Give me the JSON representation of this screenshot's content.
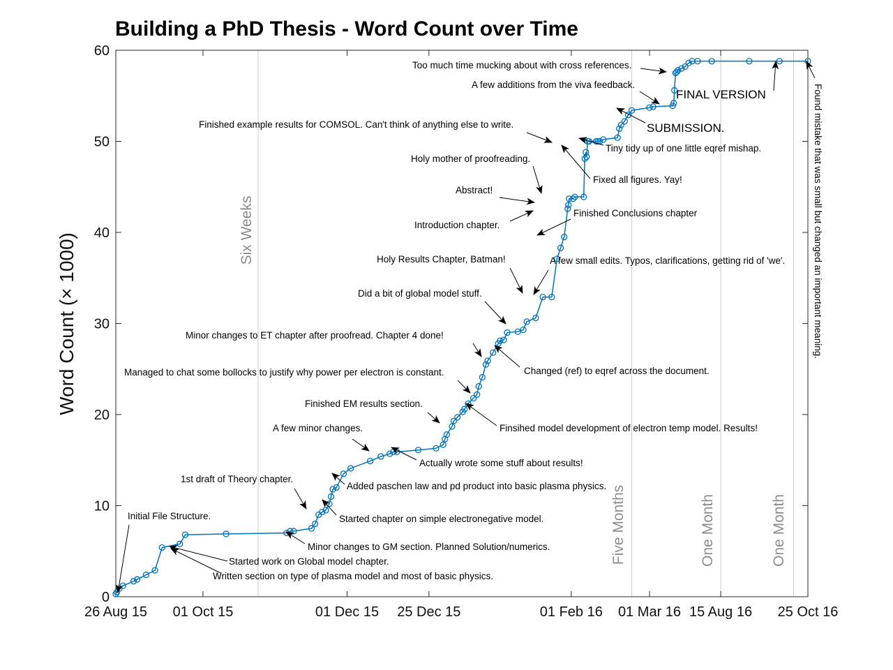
{
  "chart_data": {
    "type": "line",
    "title": "Building a PhD Thesis - Word Count over Time",
    "xlabel": "",
    "ylabel": "Word Count (× 1000)",
    "ylim": [
      0,
      60
    ],
    "yticks": [
      "0",
      "10",
      "20",
      "30",
      "40",
      "50",
      "60"
    ],
    "xtick_labels": [
      "26 Aug 15",
      "01 Oct 15",
      "01 Dec 15",
      "25 Dec 15",
      "01 Feb 16",
      "01 Mar 16",
      "15 Aug 16",
      "25 Oct 16"
    ],
    "series_color": "#0072BD",
    "series": [
      {
        "name": "",
        "x": [
          0.0,
          0.3,
          1.0,
          2.0,
          5.0,
          6.0,
          8.5,
          11.0,
          13.0,
          18.0,
          19.5,
          31.0,
          48.0,
          49.0,
          50.0,
          55.0,
          56.0,
          57.0,
          58.0,
          59.0,
          60.0,
          60.5,
          61.0,
          62.0,
          64.0,
          66.0,
          71.5,
          74.5,
          77.0,
          78.0,
          79.0,
          85.0,
          90.0,
          92.0,
          92.5,
          93.0,
          94.5,
          95.0,
          96.0,
          97.5,
          98.0,
          99.0,
          100.5,
          101.5,
          102.0,
          103.0,
          104.0,
          104.5,
          106.0,
          107.5,
          108.0,
          109.0,
          110.0,
          113.0,
          114.5,
          115.5,
          118.0,
          120.0,
          122.5,
          124.0,
          125.0,
          126.0,
          127.0,
          127.2,
          127.4,
          128.5,
          129.0,
          131.5,
          131.8,
          132.1,
          132.3,
          132.6,
          133.0,
          135.0,
          135.5,
          136.0,
          137.0,
          141.0,
          141.5,
          142.0,
          143.0,
          144.0,
          145.0,
          150.0,
          151.0,
          156.5,
          156.8,
          157.0,
          157.3,
          157.6,
          158.0,
          159.0,
          160.0,
          161.0,
          162.0,
          163.5,
          167.5,
          178.0,
          186.5,
          194.5
        ],
        "y": [
          0.3,
          0.5,
          0.9,
          1.2,
          1.7,
          1.9,
          2.4,
          2.9,
          5.4,
          5.8,
          6.8,
          6.9,
          7.0,
          7.2,
          7.2,
          7.5,
          8.0,
          9.0,
          9.3,
          9.5,
          10.2,
          11.0,
          11.8,
          12.0,
          13.5,
          14.1,
          14.9,
          15.4,
          15.7,
          15.9,
          15.9,
          16.1,
          16.3,
          16.7,
          17.3,
          17.8,
          18.7,
          19.3,
          19.7,
          20.3,
          20.6,
          21.2,
          21.8,
          22.2,
          23.1,
          24.1,
          25.5,
          25.9,
          26.8,
          27.8,
          28.1,
          28.2,
          29.0,
          29.1,
          29.3,
          30.2,
          30.6,
          32.9,
          32.9,
          37.1,
          38.3,
          39.5,
          42.6,
          43.0,
          43.7,
          43.7,
          43.9,
          43.9,
          48.1,
          48.8,
          48.3,
          50.0,
          50.0,
          50.0,
          50.0,
          50.0,
          50.2,
          50.4,
          51.4,
          51.8,
          52.2,
          52.9,
          53.4,
          53.7,
          53.8,
          53.9,
          54.2,
          55.6,
          57.5,
          57.6,
          57.8,
          58.0,
          58.2,
          58.6,
          58.8,
          58.8,
          58.8,
          58.8,
          58.8,
          58.8
        ]
      }
    ],
    "periods": [
      {
        "label": "Six Weeks"
      },
      {
        "label": "Five Months"
      },
      {
        "label": "One Month"
      },
      {
        "label": "One Month"
      }
    ],
    "annotations": [
      {
        "text": "Initial File Structure."
      },
      {
        "text": "Started work on Global model chapter."
      },
      {
        "text": "Written section on type of plasma model and most of basic physics."
      },
      {
        "text": "Minor changes to GM section. Planned Solution/numerics."
      },
      {
        "text": "1st draft of Theory chapter."
      },
      {
        "text": "Started chapter on simple electronegative model."
      },
      {
        "text": "Added paschen law and pd product into basic plasma physics."
      },
      {
        "text": "A few minor changes."
      },
      {
        "text": "Actually wrote some stuff about results!"
      },
      {
        "text": "Finished EM results section."
      },
      {
        "text": "Finsihed model development of electron temp model. Results!"
      },
      {
        "text": "Managed to chat some bollocks to justify why power per electron is constant."
      },
      {
        "text": "Changed (ref) to eqref across the document."
      },
      {
        "text": "Minor changes to ET chapter after proofread. Chapter 4 done!"
      },
      {
        "text": "Did a bit of global model stuff."
      },
      {
        "text": "Holy Results Chapter, Batman!"
      },
      {
        "text": "A few small edits. Typos, clarifications, getting rid of 'we'."
      },
      {
        "text": "Introduction chapter."
      },
      {
        "text": "Finished Conclusions chapter"
      },
      {
        "text": "Abstract!"
      },
      {
        "text": "Holy mother of proofreading."
      },
      {
        "text": "Fixed all figures. Yay!"
      },
      {
        "text": "Finished example results for COMSOL. Can't think of anything else to write."
      },
      {
        "text": "Tiny tidy up of one little eqref mishap."
      },
      {
        "text": "SUBMISSION."
      },
      {
        "text": "A few additions from the viva feedback."
      },
      {
        "text": "Too much time mucking about with cross references."
      },
      {
        "text": "FINAL VERSION"
      },
      {
        "text": "Found mistake that was small but changed an important meaning."
      }
    ]
  }
}
